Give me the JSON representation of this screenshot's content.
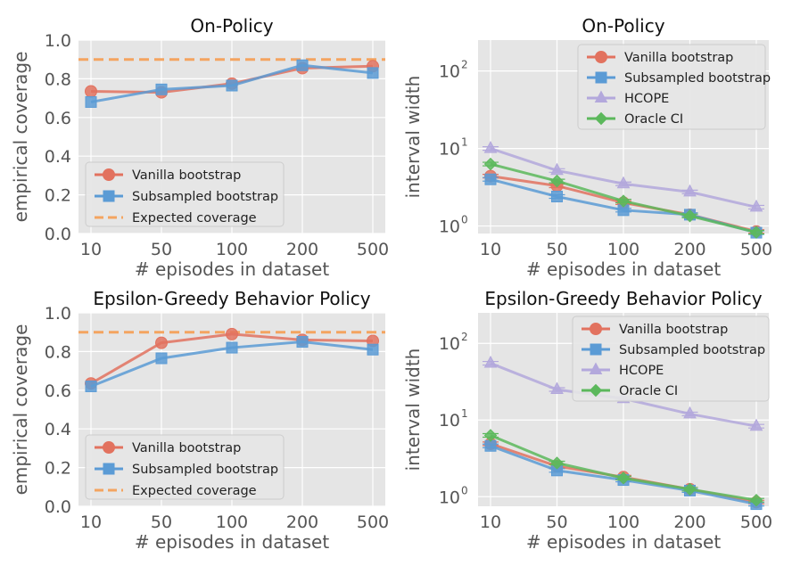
{
  "colors": {
    "vanilla": "#e2725f",
    "subsampled": "#5b9bd5",
    "hcope": "#b3a8dc",
    "oracle": "#5cb85c",
    "expected": "#f4a460",
    "panel_bg": "#e5e5e5",
    "grid": "#ffffff",
    "text": "#555555"
  },
  "chart_data": [
    {
      "type": "line",
      "title": "On-Policy",
      "xlabel": "# episodes in dataset",
      "ylabel": "empirical coverage",
      "categories": [
        "10",
        "50",
        "100",
        "200",
        "500"
      ],
      "yscale": "linear",
      "ylim": [
        0,
        1
      ],
      "yticks": [
        0.0,
        0.2,
        0.4,
        0.6,
        0.8,
        1.0
      ],
      "ytick_labels": [
        "0.0",
        "0.2",
        "0.4",
        "0.6",
        "0.8",
        "1.0"
      ],
      "grid": true,
      "legend_position": "lower-left",
      "reference_line": {
        "name": "Expected coverage",
        "y": 0.9,
        "color": "#f4a460"
      },
      "series": [
        {
          "name": "Vanilla bootstrap",
          "marker": "circle",
          "color": "#e2725f",
          "values": [
            0.735,
            0.73,
            0.775,
            0.855,
            0.865
          ]
        },
        {
          "name": "Subsampled bootstrap",
          "marker": "square",
          "color": "#5b9bd5",
          "values": [
            0.68,
            0.745,
            0.765,
            0.87,
            0.83
          ]
        }
      ]
    },
    {
      "type": "line",
      "title": "On-Policy",
      "xlabel": "# episodes in dataset",
      "ylabel": "interval width",
      "categories": [
        "10",
        "50",
        "100",
        "200",
        "500"
      ],
      "yscale": "log",
      "ylim": [
        0.8,
        250
      ],
      "yticks": [
        1,
        10,
        100
      ],
      "ytick_labels": [
        "10",
        "10",
        "10"
      ],
      "ytick_exponents": [
        "0",
        "1",
        "2"
      ],
      "grid": true,
      "legend_position": "upper-right",
      "series": [
        {
          "name": "Vanilla bootstrap",
          "marker": "circle",
          "color": "#e2725f",
          "values": [
            4.4,
            3.3,
            2.0,
            1.4,
            0.85
          ]
        },
        {
          "name": "Subsampled bootstrap",
          "marker": "square",
          "color": "#5b9bd5",
          "values": [
            4.0,
            2.4,
            1.6,
            1.4,
            0.82
          ]
        },
        {
          "name": "HCOPE",
          "marker": "triangle",
          "color": "#b3a8dc",
          "values": [
            10.0,
            5.2,
            3.5,
            2.75,
            1.75
          ]
        },
        {
          "name": "Oracle CI",
          "marker": "diamond",
          "color": "#5cb85c",
          "values": [
            6.3,
            3.8,
            2.1,
            1.35,
            0.83
          ]
        }
      ]
    },
    {
      "type": "line",
      "title": "Epsilon-Greedy Behavior Policy",
      "xlabel": "# episodes in dataset",
      "ylabel": "empirical coverage",
      "categories": [
        "10",
        "50",
        "100",
        "200",
        "500"
      ],
      "yscale": "linear",
      "ylim": [
        0,
        1
      ],
      "yticks": [
        0.0,
        0.2,
        0.4,
        0.6,
        0.8,
        1.0
      ],
      "ytick_labels": [
        "0.0",
        "0.2",
        "0.4",
        "0.6",
        "0.8",
        "1.0"
      ],
      "grid": true,
      "legend_position": "lower-left",
      "reference_line": {
        "name": "Expected coverage",
        "y": 0.9,
        "color": "#f4a460"
      },
      "series": [
        {
          "name": "Vanilla bootstrap",
          "marker": "circle",
          "color": "#e2725f",
          "values": [
            0.635,
            0.845,
            0.89,
            0.86,
            0.855
          ]
        },
        {
          "name": "Subsampled bootstrap",
          "marker": "square",
          "color": "#5b9bd5",
          "values": [
            0.62,
            0.765,
            0.82,
            0.85,
            0.81
          ]
        }
      ]
    },
    {
      "type": "line",
      "title": "Epsilon-Greedy Behavior Policy",
      "xlabel": "# episodes in dataset",
      "ylabel": "interval width",
      "categories": [
        "10",
        "50",
        "100",
        "200",
        "500"
      ],
      "yscale": "log",
      "ylim": [
        0.75,
        250
      ],
      "yticks": [
        1,
        10,
        100
      ],
      "ytick_labels": [
        "10",
        "10",
        "10"
      ],
      "ytick_exponents": [
        "0",
        "1",
        "2"
      ],
      "grid": true,
      "legend_position": "upper-right",
      "series": [
        {
          "name": "Vanilla bootstrap",
          "marker": "circle",
          "color": "#e2725f",
          "values": [
            4.9,
            2.5,
            1.8,
            1.25,
            0.85
          ]
        },
        {
          "name": "Subsampled bootstrap",
          "marker": "square",
          "color": "#5b9bd5",
          "values": [
            4.6,
            2.2,
            1.65,
            1.2,
            0.8
          ]
        },
        {
          "name": "HCOPE",
          "marker": "triangle",
          "color": "#b3a8dc",
          "values": [
            55,
            25,
            19,
            12,
            8.3
          ]
        },
        {
          "name": "Oracle CI",
          "marker": "diamond",
          "color": "#5cb85c",
          "values": [
            6.3,
            2.75,
            1.75,
            1.25,
            0.9
          ]
        }
      ]
    }
  ]
}
